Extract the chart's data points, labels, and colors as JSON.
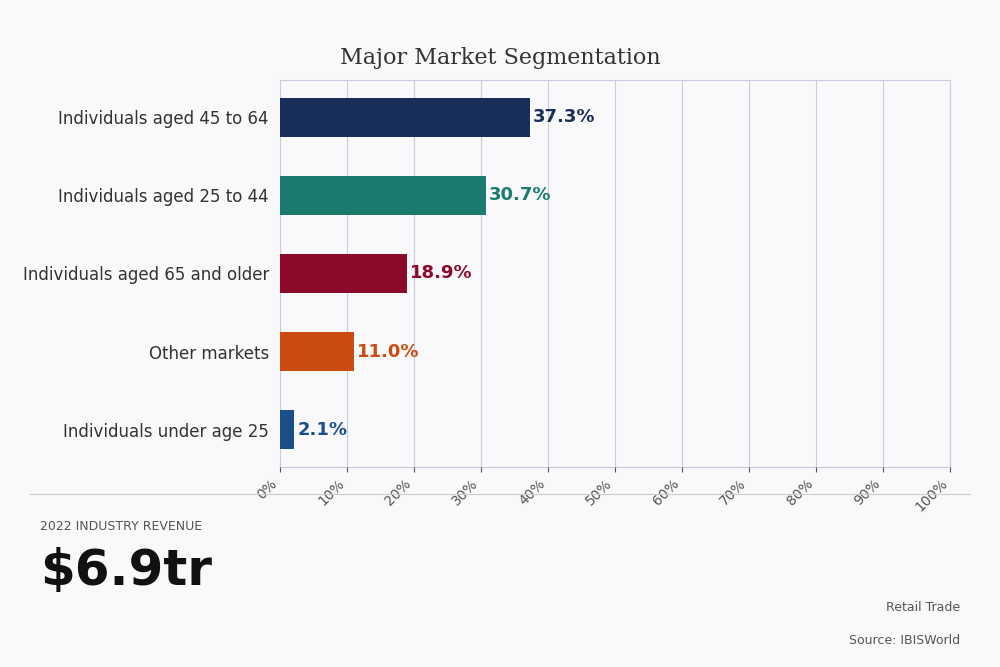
{
  "title": "Major Market Segmentation",
  "categories": [
    "Individuals aged 45 to 64",
    "Individuals aged 25 to 44",
    "Individuals aged 65 and older",
    "Other markets",
    "Individuals under age 25"
  ],
  "values": [
    37.3,
    30.7,
    18.9,
    11.0,
    2.1
  ],
  "bar_colors": [
    "#1a2e5a",
    "#1a7a6e",
    "#8b0a2a",
    "#c94d10",
    "#1a4f8a"
  ],
  "label_colors": [
    "#1a2e5a",
    "#1a7a6e",
    "#8b0a2a",
    "#c94d10",
    "#1a4f8a"
  ],
  "xlim": [
    0,
    100
  ],
  "xticks": [
    0,
    10,
    20,
    30,
    40,
    50,
    60,
    70,
    80,
    90,
    100
  ],
  "background_color": "#f9f9fb",
  "grid_color": "#c8cce0",
  "title_fontsize": 16,
  "label_fontsize": 12,
  "value_fontsize": 13,
  "bottom_label": "2022 INDUSTRY REVENUE",
  "bottom_value": "$6.9tr",
  "source_line1": "Retail Trade",
  "source_line2": "Source: IBISWorld"
}
